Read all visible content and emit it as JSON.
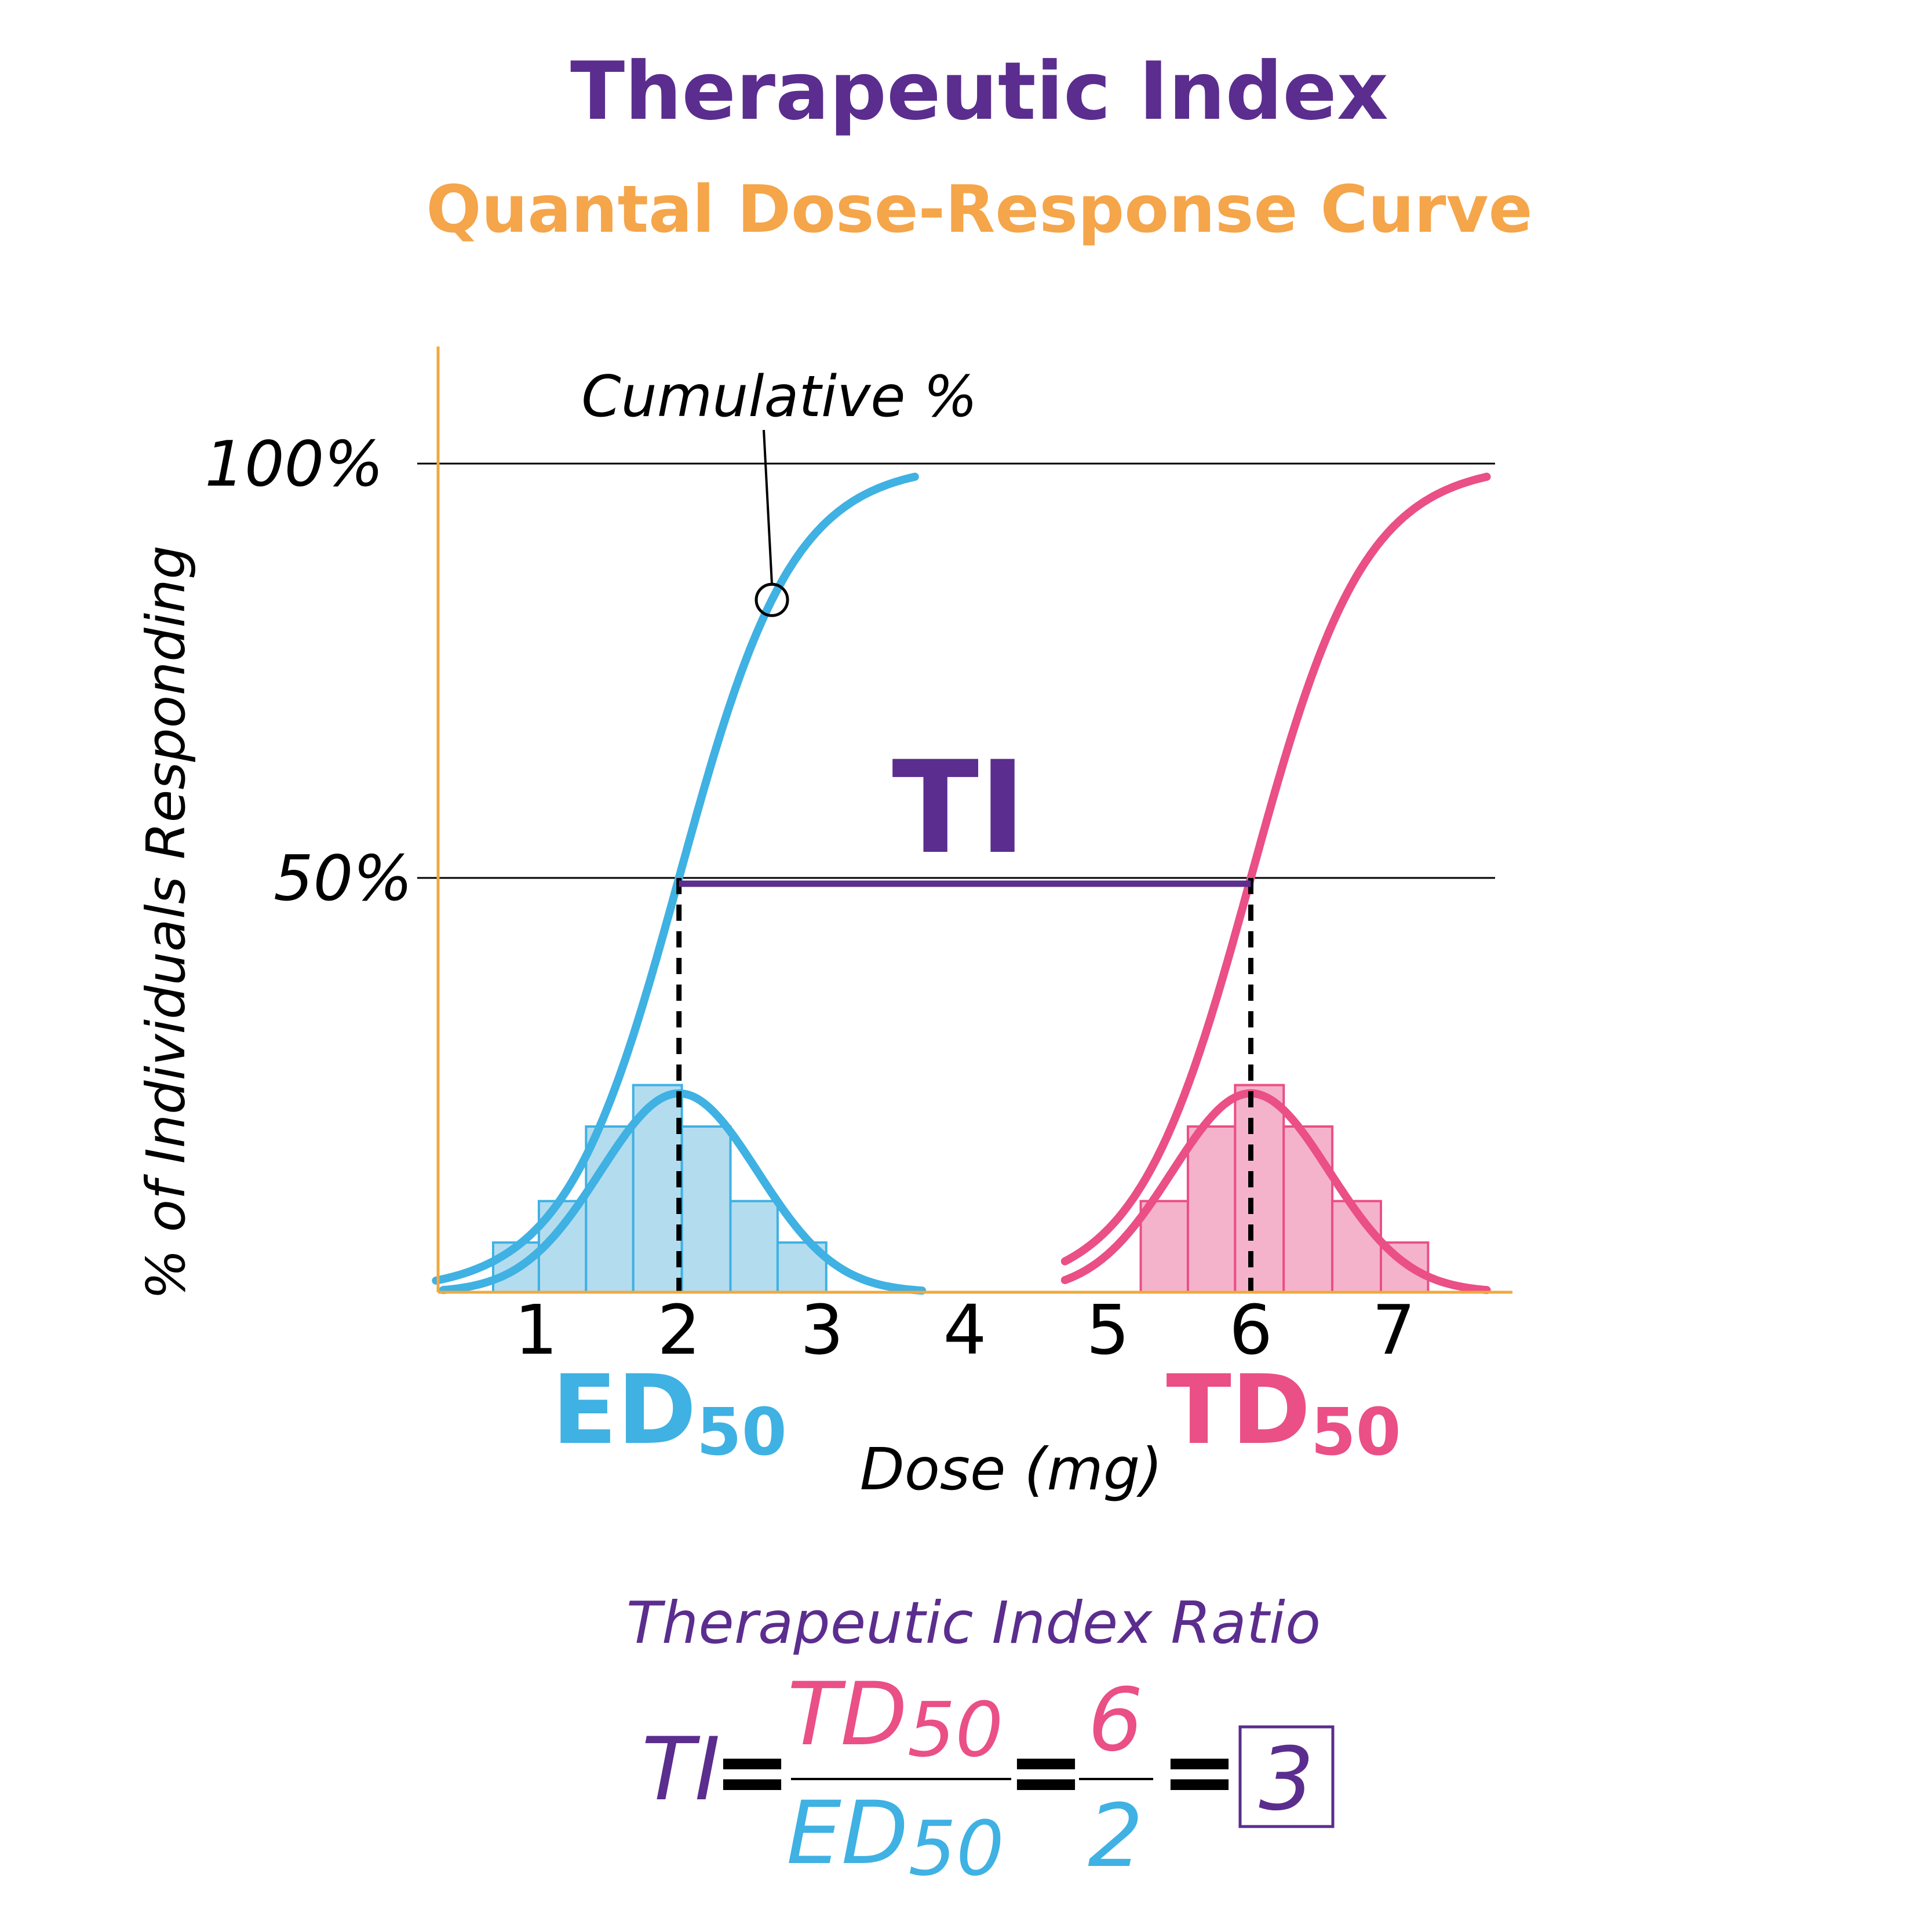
{
  "colors": {
    "purple": "#5b2d8e",
    "orange": "#f5a54a",
    "blue": "#3fb1e3",
    "blue_fill": "#b4dcef",
    "pink": "#ea4f86",
    "pink_fill": "#f5b3cb",
    "axis": "#f0a940",
    "black": "#000000"
  },
  "chart_data": {
    "type": "line",
    "title": "Therapeutic Index",
    "subtitle": "Quantal Dose-Response Curve",
    "xlabel": "Dose (mg)",
    "ylabel": "% of Individuals Responding",
    "x_ticks": [
      "1",
      "2",
      "3",
      "4",
      "5",
      "6",
      "7"
    ],
    "x_tick_values": [
      1,
      2,
      3,
      4,
      5,
      6,
      7
    ],
    "y_ticks": [
      "50%",
      "100%"
    ],
    "y_tick_values": [
      50,
      100
    ],
    "xlim": [
      0.3,
      7.85
    ],
    "ylim": [
      0,
      110
    ],
    "grid": "horizontal lines at 50% and 100%",
    "series": [
      {
        "name": "ED50",
        "kind": "cumulative sigmoid",
        "center": 2,
        "spread": 0.4,
        "x_range": [
          0.3,
          3.65
        ],
        "color": "blue"
      },
      {
        "name": "TD50",
        "kind": "cumulative sigmoid",
        "center": 6,
        "spread": 0.4,
        "x_range": [
          4.7,
          7.65
        ],
        "color": "pink"
      }
    ],
    "distributions": [
      {
        "series": "ED50",
        "center": 2,
        "peak_percent": 24,
        "bin_edges": [
          0.7,
          1.02,
          1.35,
          1.68,
          2.02,
          2.36,
          2.69,
          3.03
        ],
        "bin_heights_percent": [
          6,
          11,
          20,
          25,
          20,
          11,
          6
        ],
        "color": "blue"
      },
      {
        "series": "TD50",
        "center": 6,
        "peak_percent": 24,
        "bin_edges": [
          5.23,
          5.56,
          5.89,
          6.23,
          6.57,
          6.91,
          7.24
        ],
        "bin_heights_percent": [
          11,
          20,
          25,
          20,
          11,
          6
        ],
        "color": "pink"
      }
    ],
    "annotations": {
      "cumulative_label": "Cumulative %",
      "cumulative_point_x": 2.65,
      "ti_label": "TI",
      "ed50_label": "ED",
      "ed50_sub": "50",
      "ed50_value": 2,
      "td50_label": "TD",
      "td50_sub": "50",
      "td50_value": 6
    }
  },
  "ratio": {
    "heading": "Therapeutic Index Ratio",
    "ti": "TI",
    "equals": "=",
    "numerator_base": "TD",
    "numerator_sub": "50",
    "denominator_base": "ED",
    "denominator_sub": "50",
    "num_value": "6",
    "den_value": "2",
    "result": "3"
  }
}
